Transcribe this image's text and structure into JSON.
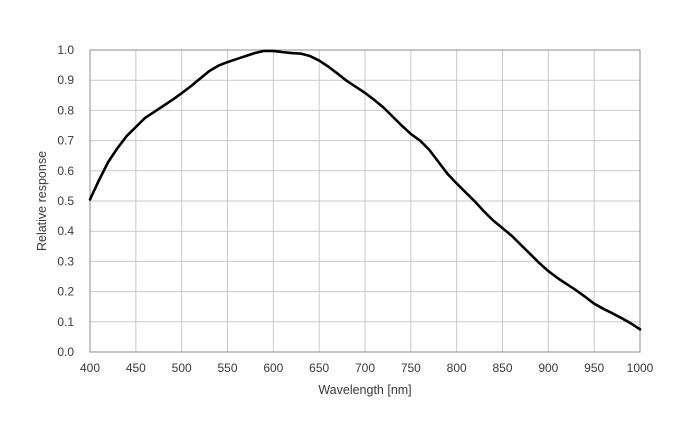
{
  "chart_data": {
    "type": "line",
    "title": "",
    "xlabel": "Wavelength  [nm]",
    "ylabel": "Relative response",
    "xlim": [
      400,
      1000
    ],
    "ylim": [
      0.0,
      1.0
    ],
    "x_ticks": [
      400,
      450,
      500,
      550,
      600,
      650,
      700,
      750,
      800,
      850,
      900,
      950,
      1000
    ],
    "y_ticks": [
      "0.0",
      "0.1",
      "0.2",
      "0.3",
      "0.4",
      "0.5",
      "0.6",
      "0.7",
      "0.8",
      "0.9",
      "1.0"
    ],
    "grid": true,
    "series": [
      {
        "color": "#000000",
        "x": [
          400,
          410,
          420,
          430,
          440,
          450,
          460,
          470,
          480,
          490,
          500,
          510,
          520,
          530,
          540,
          550,
          560,
          570,
          580,
          590,
          600,
          610,
          620,
          630,
          640,
          650,
          660,
          670,
          680,
          690,
          700,
          710,
          720,
          730,
          740,
          750,
          760,
          770,
          780,
          790,
          800,
          810,
          820,
          830,
          840,
          850,
          860,
          870,
          880,
          890,
          900,
          910,
          920,
          930,
          940,
          950,
          960,
          970,
          980,
          990,
          1000
        ],
        "y": [
          0.505,
          0.57,
          0.63,
          0.675,
          0.715,
          0.745,
          0.775,
          0.795,
          0.815,
          0.835,
          0.857,
          0.88,
          0.905,
          0.93,
          0.948,
          0.96,
          0.97,
          0.98,
          0.99,
          0.997,
          0.997,
          0.993,
          0.99,
          0.988,
          0.98,
          0.965,
          0.945,
          0.922,
          0.898,
          0.878,
          0.858,
          0.835,
          0.81,
          0.78,
          0.75,
          0.722,
          0.7,
          0.67,
          0.63,
          0.59,
          0.558,
          0.528,
          0.498,
          0.465,
          0.435,
          0.41,
          0.385,
          0.355,
          0.325,
          0.295,
          0.268,
          0.245,
          0.225,
          0.205,
          0.183,
          0.16,
          0.143,
          0.128,
          0.112,
          0.095,
          0.075
        ]
      }
    ]
  }
}
